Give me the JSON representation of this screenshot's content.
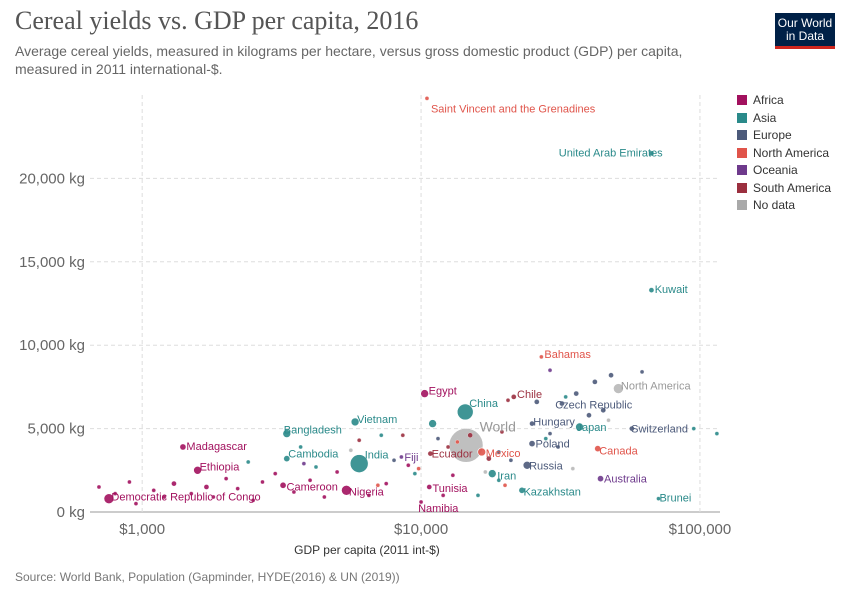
{
  "title": "Cereal yields vs. GDP per capita, 2016",
  "subtitle": "Average cereal yields, measured in kilograms per hectare, versus gross domestic product (GDP) per capita, measured in 2011 international-$.",
  "logo": {
    "line1": "Our World",
    "line2": "in Data"
  },
  "source": "Source: World Bank, Population (Gapminder, HYDE(2016) & UN (2019))",
  "legend": [
    {
      "label": "Africa",
      "color": "#a2115e"
    },
    {
      "label": "Asia",
      "color": "#2a8a8a"
    },
    {
      "label": "Europe",
      "color": "#4c5a7a"
    },
    {
      "label": "North America",
      "color": "#e0544a"
    },
    {
      "label": "Oceania",
      "color": "#6e3a8c"
    },
    {
      "label": "South America",
      "color": "#9b2f3f"
    },
    {
      "label": "No data",
      "color": "#a9a9a9"
    }
  ],
  "chart_data": {
    "type": "scatter",
    "x_scale": "log",
    "xlabel": "GDP per capita (2011 int-$)",
    "ylabel": "",
    "xlim": [
      650,
      118000
    ],
    "ylim": [
      0,
      25000
    ],
    "x_ticks": [
      {
        "value": 1000,
        "label": "$1,000"
      },
      {
        "value": 10000,
        "label": "$10,000"
      },
      {
        "value": 100000,
        "label": "$100,000"
      }
    ],
    "y_ticks": [
      {
        "value": 0,
        "label": "0 kg"
      },
      {
        "value": 5000,
        "label": "5,000 kg"
      },
      {
        "value": 10000,
        "label": "10,000 kg"
      },
      {
        "value": 15000,
        "label": "15,000 kg"
      },
      {
        "value": 20000,
        "label": "20,000 kg"
      }
    ],
    "grid": true,
    "legend_position": "right",
    "points": [
      {
        "label": "Saint Vincent and the Grenadines",
        "region": "North America",
        "x": 10500,
        "y": 24800,
        "size": 2
      },
      {
        "label": "United Arab Emirates",
        "region": "Asia",
        "x": 67000,
        "y": 21500,
        "size": 2.5
      },
      {
        "label": "Kuwait",
        "region": "Asia",
        "x": 67000,
        "y": 13300,
        "size": 2.5
      },
      {
        "label": "Bahamas",
        "region": "North America",
        "x": 27000,
        "y": 9300,
        "size": 2
      },
      {
        "label": "North America",
        "region": "No data",
        "x": 51000,
        "y": 7400,
        "size": 5
      },
      {
        "label": "Egypt",
        "region": "Africa",
        "x": 10300,
        "y": 7100,
        "size": 4
      },
      {
        "label": "Chile",
        "region": "South America",
        "x": 21500,
        "y": 6900,
        "size": 2.5
      },
      {
        "label": "Czech Republic",
        "region": "Europe",
        "x": 32000,
        "y": 6500,
        "size": 2.5
      },
      {
        "label": "China",
        "region": "Asia",
        "x": 14400,
        "y": 6000,
        "size": 8
      },
      {
        "label": "Vietnam",
        "region": "Asia",
        "x": 5800,
        "y": 5400,
        "size": 4
      },
      {
        "label": "Hungary",
        "region": "Europe",
        "x": 25000,
        "y": 5300,
        "size": 2.5
      },
      {
        "label": "Japan",
        "region": "Asia",
        "x": 37000,
        "y": 5100,
        "size": 4
      },
      {
        "label": "Switzerland",
        "region": "Europe",
        "x": 57000,
        "y": 5000,
        "size": 2.5
      },
      {
        "label": "World",
        "region": "No data",
        "x": 14500,
        "y": 4000,
        "size": 17
      },
      {
        "label": "Bangladesh",
        "region": "Asia",
        "x": 3300,
        "y": 4700,
        "size": 4
      },
      {
        "label": "Poland",
        "region": "Europe",
        "x": 25000,
        "y": 4100,
        "size": 3
      },
      {
        "label": "Canada",
        "region": "North America",
        "x": 43000,
        "y": 3800,
        "size": 3
      },
      {
        "label": "Mexico",
        "region": "North America",
        "x": 16500,
        "y": 3600,
        "size": 4
      },
      {
        "label": "Madagascar",
        "region": "Africa",
        "x": 1400,
        "y": 3900,
        "size": 3
      },
      {
        "label": "Ecuador",
        "region": "South America",
        "x": 10800,
        "y": 3500,
        "size": 2.5
      },
      {
        "label": "Fiji",
        "region": "Oceania",
        "x": 8500,
        "y": 3300,
        "size": 2
      },
      {
        "label": "Cambodia",
        "region": "Asia",
        "x": 3300,
        "y": 3200,
        "size": 3
      },
      {
        "label": "India",
        "region": "Asia",
        "x": 6000,
        "y": 2900,
        "size": 9
      },
      {
        "label": "Russia",
        "region": "Europe",
        "x": 24000,
        "y": 2800,
        "size": 4
      },
      {
        "label": "Ethiopia",
        "region": "Africa",
        "x": 1580,
        "y": 2500,
        "size": 4
      },
      {
        "label": "Iran",
        "region": "Asia",
        "x": 18000,
        "y": 2300,
        "size": 4
      },
      {
        "label": "Australia",
        "region": "Oceania",
        "x": 44000,
        "y": 2000,
        "size": 3
      },
      {
        "label": "Cameroon",
        "region": "Africa",
        "x": 3200,
        "y": 1600,
        "size": 3
      },
      {
        "label": "Nigeria",
        "region": "Africa",
        "x": 5400,
        "y": 1300,
        "size": 5
      },
      {
        "label": "Tunisia",
        "region": "Africa",
        "x": 10700,
        "y": 1500,
        "size": 2.5
      },
      {
        "label": "Kazakhstan",
        "region": "Asia",
        "x": 23000,
        "y": 1300,
        "size": 3
      },
      {
        "label": "Democratic Republic of Congo",
        "region": "Africa",
        "x": 760,
        "y": 800,
        "size": 5
      },
      {
        "label": "Namibia",
        "region": "Africa",
        "x": 10000,
        "y": 600,
        "size": 2
      },
      {
        "label": "Brunei",
        "region": "Asia",
        "x": 71000,
        "y": 800,
        "size": 2
      },
      {
        "label": "",
        "region": "Africa",
        "x": 700,
        "y": 1500,
        "size": 2
      },
      {
        "label": "",
        "region": "Africa",
        "x": 800,
        "y": 1100,
        "size": 2
      },
      {
        "label": "",
        "region": "Africa",
        "x": 900,
        "y": 1800,
        "size": 2
      },
      {
        "label": "",
        "region": "Africa",
        "x": 950,
        "y": 500,
        "size": 2
      },
      {
        "label": "",
        "region": "Africa",
        "x": 1100,
        "y": 1300,
        "size": 2
      },
      {
        "label": "",
        "region": "Africa",
        "x": 1200,
        "y": 900,
        "size": 2
      },
      {
        "label": "",
        "region": "Africa",
        "x": 1300,
        "y": 1700,
        "size": 2.5
      },
      {
        "label": "",
        "region": "Africa",
        "x": 1500,
        "y": 1100,
        "size": 2
      },
      {
        "label": "",
        "region": "Africa",
        "x": 1700,
        "y": 1500,
        "size": 2.5
      },
      {
        "label": "",
        "region": "Africa",
        "x": 1800,
        "y": 900,
        "size": 2
      },
      {
        "label": "",
        "region": "Africa",
        "x": 2000,
        "y": 2000,
        "size": 2
      },
      {
        "label": "",
        "region": "Africa",
        "x": 2200,
        "y": 1400,
        "size": 2
      },
      {
        "label": "",
        "region": "Africa",
        "x": 2500,
        "y": 700,
        "size": 2
      },
      {
        "label": "",
        "region": "Africa",
        "x": 2700,
        "y": 1800,
        "size": 2
      },
      {
        "label": "",
        "region": "Africa",
        "x": 3000,
        "y": 2300,
        "size": 2
      },
      {
        "label": "",
        "region": "Africa",
        "x": 3500,
        "y": 1200,
        "size": 2
      },
      {
        "label": "",
        "region": "Africa",
        "x": 4000,
        "y": 1900,
        "size": 2
      },
      {
        "label": "",
        "region": "Africa",
        "x": 4500,
        "y": 900,
        "size": 2
      },
      {
        "label": "",
        "region": "Africa",
        "x": 5000,
        "y": 2400,
        "size": 2
      },
      {
        "label": "",
        "region": "Africa",
        "x": 6500,
        "y": 1000,
        "size": 2
      },
      {
        "label": "",
        "region": "Africa",
        "x": 7500,
        "y": 1700,
        "size": 2
      },
      {
        "label": "",
        "region": "Africa",
        "x": 9000,
        "y": 2800,
        "size": 2
      },
      {
        "label": "",
        "region": "Africa",
        "x": 12000,
        "y": 1000,
        "size": 2
      },
      {
        "label": "",
        "region": "Africa",
        "x": 13000,
        "y": 2200,
        "size": 2
      },
      {
        "label": "",
        "region": "Asia",
        "x": 2400,
        "y": 3000,
        "size": 2
      },
      {
        "label": "",
        "region": "Asia",
        "x": 3700,
        "y": 3900,
        "size": 2
      },
      {
        "label": "",
        "region": "Asia",
        "x": 4200,
        "y": 2700,
        "size": 2
      },
      {
        "label": "",
        "region": "Asia",
        "x": 7200,
        "y": 4600,
        "size": 2
      },
      {
        "label": "",
        "region": "Asia",
        "x": 9500,
        "y": 2300,
        "size": 2
      },
      {
        "label": "",
        "region": "Asia",
        "x": 11000,
        "y": 5300,
        "size": 4
      },
      {
        "label": "",
        "region": "Asia",
        "x": 16000,
        "y": 1000,
        "size": 2
      },
      {
        "label": "",
        "region": "Asia",
        "x": 19000,
        "y": 1900,
        "size": 2
      },
      {
        "label": "",
        "region": "Asia",
        "x": 28000,
        "y": 4400,
        "size": 2
      },
      {
        "label": "",
        "region": "Asia",
        "x": 33000,
        "y": 6900,
        "size": 2
      },
      {
        "label": "",
        "region": "Asia",
        "x": 95000,
        "y": 5000,
        "size": 2
      },
      {
        "label": "",
        "region": "Asia",
        "x": 115000,
        "y": 4700,
        "size": 2
      },
      {
        "label": "",
        "region": "Europe",
        "x": 8000,
        "y": 3100,
        "size": 2
      },
      {
        "label": "",
        "region": "Europe",
        "x": 11500,
        "y": 4400,
        "size": 2
      },
      {
        "label": "",
        "region": "Europe",
        "x": 19000,
        "y": 3600,
        "size": 2
      },
      {
        "label": "",
        "region": "Europe",
        "x": 21000,
        "y": 3100,
        "size": 2
      },
      {
        "label": "",
        "region": "Europe",
        "x": 26000,
        "y": 6600,
        "size": 2.5
      },
      {
        "label": "",
        "region": "Europe",
        "x": 29000,
        "y": 4700,
        "size": 2
      },
      {
        "label": "",
        "region": "Europe",
        "x": 31000,
        "y": 3900,
        "size": 2
      },
      {
        "label": "",
        "region": "Europe",
        "x": 36000,
        "y": 7100,
        "size": 2.5
      },
      {
        "label": "",
        "region": "Europe",
        "x": 40000,
        "y": 5800,
        "size": 2.5
      },
      {
        "label": "",
        "region": "Europe",
        "x": 42000,
        "y": 7800,
        "size": 2.5
      },
      {
        "label": "",
        "region": "Europe",
        "x": 45000,
        "y": 6100,
        "size": 2.5
      },
      {
        "label": "",
        "region": "Europe",
        "x": 48000,
        "y": 8200,
        "size": 2.5
      },
      {
        "label": "",
        "region": "Europe",
        "x": 62000,
        "y": 8400,
        "size": 2
      },
      {
        "label": "",
        "region": "North America",
        "x": 7000,
        "y": 1600,
        "size": 2
      },
      {
        "label": "",
        "region": "North America",
        "x": 9800,
        "y": 2600,
        "size": 2
      },
      {
        "label": "",
        "region": "North America",
        "x": 13500,
        "y": 4200,
        "size": 2
      },
      {
        "label": "",
        "region": "North America",
        "x": 20000,
        "y": 1600,
        "size": 2
      },
      {
        "label": "",
        "region": "Oceania",
        "x": 3800,
        "y": 2900,
        "size": 2
      },
      {
        "label": "",
        "region": "Oceania",
        "x": 29000,
        "y": 8500,
        "size": 2
      },
      {
        "label": "",
        "region": "South America",
        "x": 6000,
        "y": 4300,
        "size": 2
      },
      {
        "label": "",
        "region": "South America",
        "x": 8600,
        "y": 4600,
        "size": 2
      },
      {
        "label": "",
        "region": "South America",
        "x": 12500,
        "y": 3900,
        "size": 2
      },
      {
        "label": "",
        "region": "South America",
        "x": 15000,
        "y": 4600,
        "size": 2.5
      },
      {
        "label": "",
        "region": "South America",
        "x": 17500,
        "y": 3200,
        "size": 2.5
      },
      {
        "label": "",
        "region": "South America",
        "x": 19500,
        "y": 4800,
        "size": 2
      },
      {
        "label": "",
        "region": "South America",
        "x": 20500,
        "y": 6700,
        "size": 2
      },
      {
        "label": "",
        "region": "No data",
        "x": 5600,
        "y": 3700,
        "size": 2
      },
      {
        "label": "",
        "region": "No data",
        "x": 17000,
        "y": 2400,
        "size": 2
      },
      {
        "label": "",
        "region": "No data",
        "x": 35000,
        "y": 2600,
        "size": 2
      },
      {
        "label": "",
        "region": "No data",
        "x": 47000,
        "y": 5500,
        "size": 2
      }
    ]
  }
}
